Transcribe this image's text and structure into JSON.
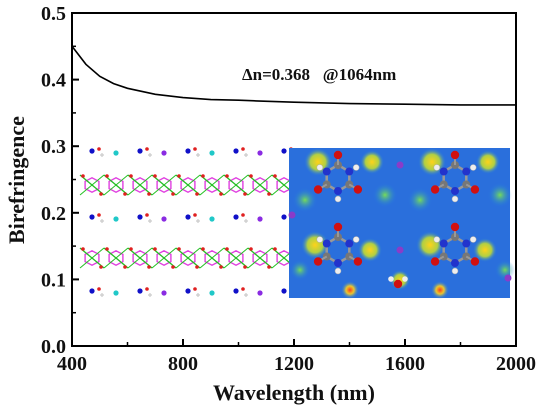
{
  "chart_data": {
    "type": "line",
    "title": "",
    "xlabel": "Wavelength (nm)",
    "ylabel": "Birefringence",
    "xlim": [
      400,
      2000
    ],
    "ylim": [
      0.0,
      0.5
    ],
    "x_ticks": [
      400,
      800,
      1200,
      1600,
      2000
    ],
    "x_tick_labels": [
      "400",
      "800",
      "1200",
      "1600",
      "2000"
    ],
    "y_ticks": [
      0.0,
      0.1,
      0.2,
      0.3,
      0.4,
      0.5
    ],
    "y_tick_labels": [
      "0.0",
      "0.1",
      "0.2",
      "0.3",
      "0.4",
      "0.5"
    ],
    "grid": false,
    "legend": "none",
    "annotation": "Δn=0.368   @1064nm",
    "series": [
      {
        "color": "#000000",
        "x": [
          400,
          450,
          500,
          550,
          600,
          700,
          800,
          900,
          1000,
          1064,
          1200,
          1400,
          1600,
          1800,
          2000
        ],
        "y": [
          0.45,
          0.423,
          0.405,
          0.394,
          0.387,
          0.378,
          0.373,
          0.37,
          0.369,
          0.368,
          0.366,
          0.364,
          0.363,
          0.362,
          0.362
        ]
      }
    ]
  }
}
